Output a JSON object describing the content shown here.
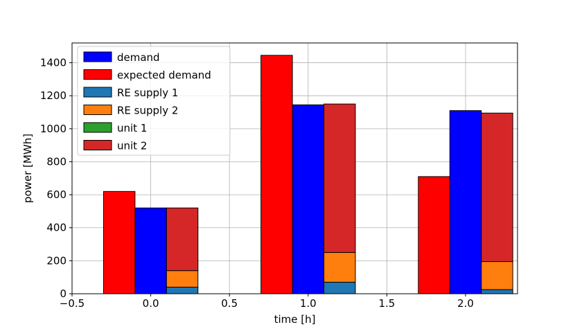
{
  "chart_data": {
    "type": "bar",
    "xlabel": "time [h]",
    "ylabel": "power [MWh]",
    "xlim": [
      -0.5,
      2.33
    ],
    "ylim": [
      0,
      1520
    ],
    "xticks": [
      -0.5,
      0.0,
      0.5,
      1.0,
      1.5,
      2.0
    ],
    "xtick_labels": [
      "−0.5",
      "0.0",
      "0.5",
      "1.0",
      "1.5",
      "2.0"
    ],
    "yticks": [
      0,
      200,
      400,
      600,
      800,
      1000,
      1200,
      1400
    ],
    "ytick_labels": [
      "0",
      "200",
      "400",
      "600",
      "800",
      "1000",
      "1200",
      "1400"
    ],
    "grid": true,
    "legend_position": "top-left",
    "bar_width": 0.2,
    "x": [
      0,
      1,
      2
    ],
    "series": [
      {
        "name": "demand",
        "offset": 0.0,
        "color": "#0000ff",
        "values": [
          520,
          1145,
          1110
        ]
      },
      {
        "name": "expected demand",
        "offset": -0.2,
        "color": "#ff0000",
        "values": [
          620,
          1445,
          710
        ]
      },
      {
        "name": "RE supply 1",
        "offset": 0.2,
        "color": "#1f77b4",
        "stack": "supply",
        "values": [
          40,
          70,
          25
        ]
      },
      {
        "name": "RE supply 2",
        "offset": 0.2,
        "color": "#ff7f0e",
        "stack": "supply",
        "values": [
          100,
          180,
          170
        ]
      },
      {
        "name": "unit 1",
        "offset": 0.2,
        "color": "#2ca02c",
        "stack": "supply",
        "values": [
          0,
          0,
          0
        ]
      },
      {
        "name": "unit 2",
        "offset": 0.2,
        "color": "#d62728",
        "stack": "supply",
        "values": [
          380,
          900,
          900
        ]
      }
    ]
  }
}
